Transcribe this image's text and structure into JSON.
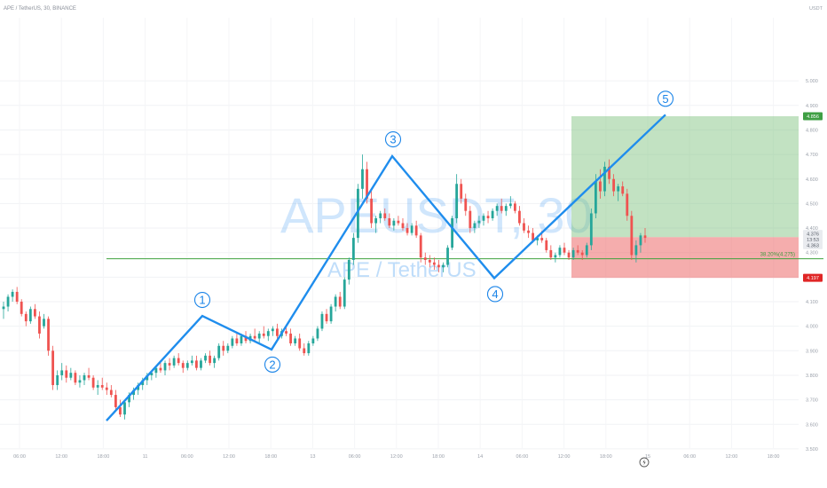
{
  "header": {
    "title": "APE / TetherUS, 30, BINANCE"
  },
  "watermark": {
    "symbol": "APEUSDT, 30",
    "name": "APE / TetherUS"
  },
  "axis": {
    "currency": "USDT"
  },
  "chart_data": {
    "type": "candlestick",
    "interval": "30",
    "ylim": [
      3.5,
      5.2
    ],
    "y_ticks": [
      "5.000",
      "4.900",
      "4.800",
      "4.700",
      "4.600",
      "4.500",
      "4.400",
      "4.300",
      "4.200",
      "4.100",
      "4.000",
      "3.900",
      "3.800",
      "3.700",
      "3.600",
      "3.500"
    ],
    "x_ticks": [
      "06:00",
      "12:00",
      "18:00",
      "11",
      "06:00",
      "12:00",
      "18:00",
      "13",
      "06:00",
      "12:00",
      "18:00",
      "14",
      "06:00",
      "12:00",
      "18:00",
      "15",
      "06:00",
      "12:00",
      "18:00"
    ],
    "price_labels": [
      {
        "text": "4.856",
        "price": 4.856,
        "kind": "target"
      },
      {
        "text": "4.376",
        "price": 4.376,
        "kind": "current"
      },
      {
        "text": "13:53",
        "price": 4.353,
        "kind": "countdown"
      },
      {
        "text": "4.363",
        "price": 4.33,
        "kind": "level"
      },
      {
        "text": "4.197",
        "price": 4.197,
        "kind": "stop"
      }
    ],
    "fib_level": {
      "label": "38.20%(4.275)",
      "price": 4.275
    },
    "position": {
      "entry": 4.363,
      "target": 4.856,
      "stop": 4.197
    },
    "waves": [
      {
        "label": "",
        "x": 120,
        "price": 3.615
      },
      {
        "label": "1",
        "x": 228,
        "price": 4.042
      },
      {
        "label": "2",
        "x": 306,
        "price": 3.905
      },
      {
        "label": "3",
        "x": 442,
        "price": 4.693
      },
      {
        "label": "4",
        "x": 557,
        "price": 4.196
      },
      {
        "label": "5",
        "x": 750,
        "price": 4.862
      }
    ],
    "ohlc": [
      [
        4.07,
        4.1,
        4.03,
        4.08
      ],
      [
        4.08,
        4.13,
        4.06,
        4.12
      ],
      [
        4.12,
        4.15,
        4.1,
        4.14
      ],
      [
        4.14,
        4.16,
        4.09,
        4.1
      ],
      [
        4.1,
        4.11,
        4.04,
        4.05
      ],
      [
        4.05,
        4.06,
        4.0,
        4.02
      ],
      [
        4.02,
        4.08,
        4.01,
        4.07
      ],
      [
        4.07,
        4.09,
        4.03,
        4.04
      ],
      [
        4.04,
        4.06,
        3.95,
        3.97
      ],
      [
        4.0,
        4.05,
        3.99,
        4.03
      ],
      [
        4.03,
        4.04,
        3.88,
        3.9
      ],
      [
        3.9,
        3.92,
        3.74,
        3.76
      ],
      [
        3.76,
        3.82,
        3.74,
        3.8
      ],
      [
        3.8,
        3.85,
        3.78,
        3.82
      ],
      [
        3.82,
        3.84,
        3.77,
        3.79
      ],
      [
        3.79,
        3.83,
        3.78,
        3.81
      ],
      [
        3.81,
        3.82,
        3.76,
        3.77
      ],
      [
        3.77,
        3.8,
        3.75,
        3.78
      ],
      [
        3.78,
        3.81,
        3.76,
        3.8
      ],
      [
        3.8,
        3.83,
        3.78,
        3.79
      ],
      [
        3.79,
        3.8,
        3.74,
        3.75
      ],
      [
        3.75,
        3.78,
        3.72,
        3.76
      ],
      [
        3.76,
        3.79,
        3.74,
        3.75
      ],
      [
        3.75,
        3.77,
        3.72,
        3.74
      ],
      [
        3.74,
        3.76,
        3.71,
        3.72
      ],
      [
        3.72,
        3.74,
        3.66,
        3.67
      ],
      [
        3.67,
        3.7,
        3.63,
        3.64
      ],
      [
        3.64,
        3.7,
        3.62,
        3.69
      ],
      [
        3.69,
        3.73,
        3.67,
        3.72
      ],
      [
        3.72,
        3.75,
        3.7,
        3.74
      ],
      [
        3.74,
        3.77,
        3.72,
        3.76
      ],
      [
        3.76,
        3.79,
        3.74,
        3.78
      ],
      [
        3.78,
        3.81,
        3.76,
        3.8
      ],
      [
        3.8,
        3.82,
        3.78,
        3.81
      ],
      [
        3.81,
        3.84,
        3.79,
        3.83
      ],
      [
        3.83,
        3.85,
        3.81,
        3.82
      ],
      [
        3.82,
        3.86,
        3.8,
        3.85
      ],
      [
        3.85,
        3.87,
        3.82,
        3.84
      ],
      [
        3.84,
        3.88,
        3.83,
        3.87
      ],
      [
        3.87,
        3.89,
        3.84,
        3.85
      ],
      [
        3.85,
        3.86,
        3.81,
        3.83
      ],
      [
        3.83,
        3.86,
        3.82,
        3.85
      ],
      [
        3.85,
        3.88,
        3.84,
        3.86
      ],
      [
        3.86,
        3.88,
        3.82,
        3.83
      ],
      [
        3.83,
        3.87,
        3.82,
        3.86
      ],
      [
        3.86,
        3.89,
        3.85,
        3.88
      ],
      [
        3.88,
        3.9,
        3.84,
        3.85
      ],
      [
        3.85,
        3.88,
        3.83,
        3.87
      ],
      [
        3.87,
        3.93,
        3.86,
        3.92
      ],
      [
        3.92,
        3.94,
        3.88,
        3.9
      ],
      [
        3.9,
        3.93,
        3.89,
        3.92
      ],
      [
        3.92,
        3.96,
        3.91,
        3.95
      ],
      [
        3.95,
        3.97,
        3.92,
        3.93
      ],
      [
        3.93,
        3.97,
        3.92,
        3.96
      ],
      [
        3.96,
        3.98,
        3.93,
        3.94
      ],
      [
        3.94,
        3.97,
        3.93,
        3.96
      ],
      [
        3.96,
        3.99,
        3.94,
        3.95
      ],
      [
        3.95,
        3.98,
        3.93,
        3.97
      ],
      [
        3.97,
        4.0,
        3.95,
        3.96
      ],
      [
        3.96,
        3.99,
        3.94,
        3.98
      ],
      [
        3.98,
        4.0,
        3.96,
        3.99
      ],
      [
        3.99,
        4.01,
        3.95,
        3.96
      ],
      [
        3.96,
        3.99,
        3.95,
        3.98
      ],
      [
        3.98,
        4.0,
        3.96,
        3.97
      ],
      [
        3.97,
        3.99,
        3.92,
        3.93
      ],
      [
        3.93,
        3.96,
        3.92,
        3.95
      ],
      [
        3.95,
        3.97,
        3.9,
        3.91
      ],
      [
        3.91,
        3.93,
        3.88,
        3.89
      ],
      [
        3.89,
        3.94,
        3.88,
        3.93
      ],
      [
        3.93,
        3.96,
        3.92,
        3.95
      ],
      [
        3.95,
        4.0,
        3.94,
        3.99
      ],
      [
        3.99,
        4.06,
        3.98,
        4.05
      ],
      [
        4.05,
        4.07,
        4.01,
        4.02
      ],
      [
        4.02,
        4.09,
        4.01,
        4.08
      ],
      [
        4.08,
        4.13,
        4.06,
        4.12
      ],
      [
        4.12,
        4.14,
        4.07,
        4.08
      ],
      [
        4.08,
        4.2,
        4.07,
        4.19
      ],
      [
        4.19,
        4.28,
        4.17,
        4.27
      ],
      [
        4.27,
        4.38,
        4.25,
        4.36
      ],
      [
        4.36,
        4.58,
        4.34,
        4.56
      ],
      [
        4.56,
        4.7,
        4.52,
        4.64
      ],
      [
        4.64,
        4.67,
        4.5,
        4.52
      ],
      [
        4.52,
        4.55,
        4.4,
        4.42
      ],
      [
        4.42,
        4.45,
        4.38,
        4.44
      ],
      [
        4.44,
        4.47,
        4.42,
        4.46
      ],
      [
        4.46,
        4.48,
        4.43,
        4.44
      ],
      [
        4.44,
        4.46,
        4.4,
        4.41
      ],
      [
        4.41,
        4.44,
        4.39,
        4.43
      ],
      [
        4.43,
        4.45,
        4.41,
        4.42
      ],
      [
        4.42,
        4.44,
        4.39,
        4.4
      ],
      [
        4.4,
        4.42,
        4.37,
        4.38
      ],
      [
        4.38,
        4.42,
        4.37,
        4.41
      ],
      [
        4.41,
        4.43,
        4.36,
        4.37
      ],
      [
        4.37,
        4.38,
        4.26,
        4.28
      ],
      [
        4.28,
        4.3,
        4.25,
        4.27
      ],
      [
        4.27,
        4.29,
        4.24,
        4.26
      ],
      [
        4.26,
        4.28,
        4.23,
        4.25
      ],
      [
        4.25,
        4.27,
        4.22,
        4.24
      ],
      [
        4.24,
        4.26,
        4.22,
        4.25
      ],
      [
        4.25,
        4.33,
        4.24,
        4.32
      ],
      [
        4.32,
        4.45,
        4.31,
        4.44
      ],
      [
        4.44,
        4.62,
        4.42,
        4.58
      ],
      [
        4.58,
        4.6,
        4.5,
        4.52
      ],
      [
        4.52,
        4.54,
        4.45,
        4.47
      ],
      [
        4.47,
        4.49,
        4.38,
        4.4
      ],
      [
        4.4,
        4.43,
        4.38,
        4.42
      ],
      [
        4.42,
        4.45,
        4.4,
        4.43
      ],
      [
        4.43,
        4.46,
        4.41,
        4.45
      ],
      [
        4.45,
        4.47,
        4.42,
        4.44
      ],
      [
        4.44,
        4.48,
        4.43,
        4.47
      ],
      [
        4.47,
        4.5,
        4.45,
        4.49
      ],
      [
        4.49,
        4.52,
        4.46,
        4.47
      ],
      [
        4.47,
        4.5,
        4.45,
        4.49
      ],
      [
        4.49,
        4.53,
        4.48,
        4.5
      ],
      [
        4.5,
        4.51,
        4.46,
        4.47
      ],
      [
        4.47,
        4.49,
        4.41,
        4.42
      ],
      [
        4.42,
        4.44,
        4.38,
        4.39
      ],
      [
        4.39,
        4.41,
        4.36,
        4.38
      ],
      [
        4.38,
        4.4,
        4.34,
        4.35
      ],
      [
        4.35,
        4.37,
        4.33,
        4.36
      ],
      [
        4.36,
        4.39,
        4.34,
        4.35
      ],
      [
        4.35,
        4.36,
        4.3,
        4.31
      ],
      [
        4.31,
        4.33,
        4.27,
        4.28
      ],
      [
        4.28,
        4.3,
        4.26,
        4.29
      ],
      [
        4.29,
        4.33,
        4.28,
        4.32
      ],
      [
        4.32,
        4.34,
        4.29,
        4.3
      ],
      [
        4.3,
        4.31,
        4.27,
        4.28
      ],
      [
        4.28,
        4.32,
        4.27,
        4.31
      ],
      [
        4.31,
        4.33,
        4.29,
        4.3
      ],
      [
        4.3,
        4.31,
        4.27,
        4.29
      ],
      [
        4.29,
        4.34,
        4.28,
        4.33
      ],
      [
        4.33,
        4.48,
        4.31,
        4.46
      ],
      [
        4.46,
        4.62,
        4.44,
        4.59
      ],
      [
        4.59,
        4.64,
        4.52,
        4.55
      ],
      [
        4.55,
        4.67,
        4.53,
        4.65
      ],
      [
        4.65,
        4.68,
        4.58,
        4.6
      ],
      [
        4.6,
        4.62,
        4.53,
        4.55
      ],
      [
        4.55,
        4.58,
        4.51,
        4.57
      ],
      [
        4.57,
        4.59,
        4.53,
        4.54
      ],
      [
        4.54,
        4.56,
        4.43,
        4.45
      ],
      [
        4.45,
        4.47,
        4.27,
        4.29
      ],
      [
        4.29,
        4.35,
        4.26,
        4.33
      ],
      [
        4.33,
        4.38,
        4.3,
        4.37
      ],
      [
        4.37,
        4.4,
        4.34,
        4.36
      ]
    ]
  }
}
